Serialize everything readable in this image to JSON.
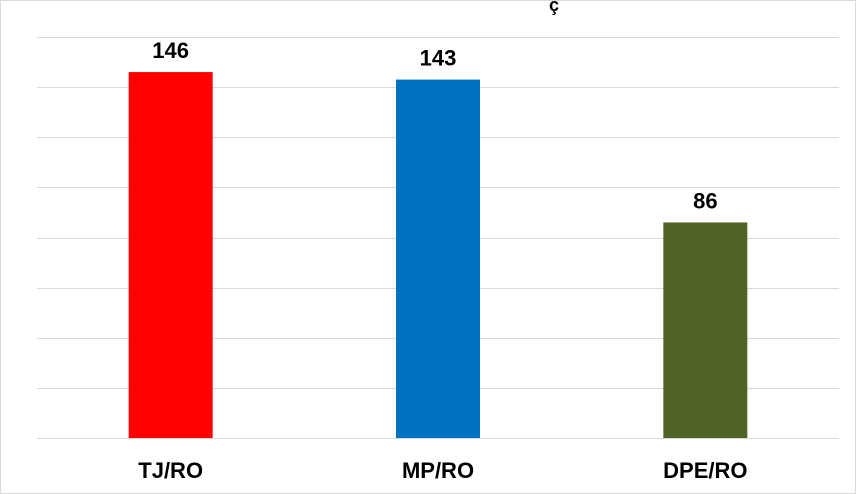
{
  "chart_data": {
    "type": "bar",
    "title_fragment": "ç",
    "categories": [
      "TJ/RO",
      "MP/RO",
      "DPE/RO"
    ],
    "values": [
      146,
      143,
      86
    ],
    "bar_colors": [
      "#ff0000",
      "#0070c0",
      "#4f6228"
    ],
    "gridline_color": "#d9d9d9",
    "ylim": [
      0,
      160
    ],
    "gridline_step": 20,
    "grid": true,
    "legend": "none"
  }
}
